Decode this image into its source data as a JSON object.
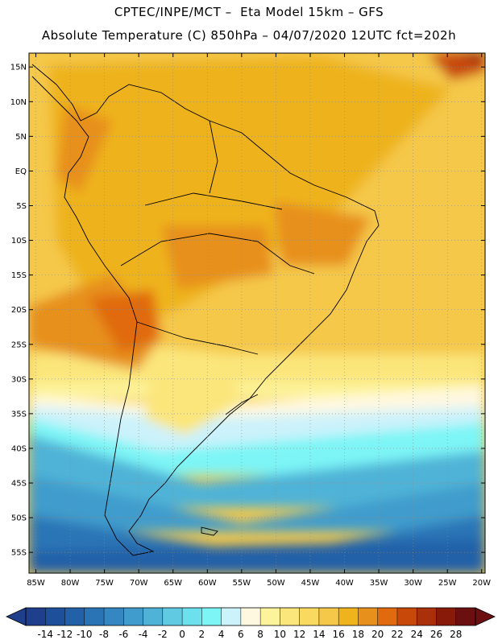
{
  "header": {
    "line1": "CPTEC/INPE/MCT –  Eta Model 15km – GFS",
    "line2": "Absolute Temperature (C) 850hPa – 04/07/2020 12UTC fct=202h"
  },
  "map": {
    "lon_range": [
      -86,
      -19.5
    ],
    "lat_range": [
      -58,
      17
    ],
    "lat_ticks": [
      {
        "value": 15,
        "label": "15N"
      },
      {
        "value": 10,
        "label": "10N"
      },
      {
        "value": 5,
        "label": "5N"
      },
      {
        "value": 0,
        "label": "EQ"
      },
      {
        "value": -5,
        "label": "5S"
      },
      {
        "value": -10,
        "label": "10S"
      },
      {
        "value": -15,
        "label": "15S"
      },
      {
        "value": -20,
        "label": "20S"
      },
      {
        "value": -25,
        "label": "25S"
      },
      {
        "value": -30,
        "label": "30S"
      },
      {
        "value": -35,
        "label": "35S"
      },
      {
        "value": -40,
        "label": "40S"
      },
      {
        "value": -45,
        "label": "45S"
      },
      {
        "value": -50,
        "label": "50S"
      },
      {
        "value": -55,
        "label": "55S"
      }
    ],
    "lon_ticks": [
      {
        "value": -85,
        "label": "85W"
      },
      {
        "value": -80,
        "label": "80W"
      },
      {
        "value": -75,
        "label": "75W"
      },
      {
        "value": -70,
        "label": "70W"
      },
      {
        "value": -65,
        "label": "65W"
      },
      {
        "value": -60,
        "label": "60W"
      },
      {
        "value": -55,
        "label": "55W"
      },
      {
        "value": -50,
        "label": "50W"
      },
      {
        "value": -45,
        "label": "45W"
      },
      {
        "value": -40,
        "label": "40W"
      },
      {
        "value": -35,
        "label": "35W"
      },
      {
        "value": -30,
        "label": "30W"
      },
      {
        "value": -25,
        "label": "25W"
      },
      {
        "value": -20,
        "label": "20W"
      }
    ]
  },
  "colorbar": {
    "labels": [
      "-14",
      "-12",
      "-10",
      "-8",
      "-6",
      "-4",
      "-2",
      "0",
      "2",
      "4",
      "6",
      "8",
      "10",
      "12",
      "14",
      "16",
      "18",
      "20",
      "22",
      "24",
      "26",
      "28"
    ],
    "colors": [
      "#1f3f8c",
      "#1e4f9a",
      "#2261a8",
      "#2a74b6",
      "#3487c1",
      "#3f9ccc",
      "#4fb3d7",
      "#60cae3",
      "#6ce0ec",
      "#7df5f6",
      "#ccf2fb",
      "#fff8e1",
      "#fdf39a",
      "#fbe67c",
      "#f9d95f",
      "#f5c84a",
      "#eeb31d",
      "#e7901c",
      "#e06a0d",
      "#c8480a",
      "#a93008",
      "#871a09",
      "#6b0f10"
    ]
  }
}
